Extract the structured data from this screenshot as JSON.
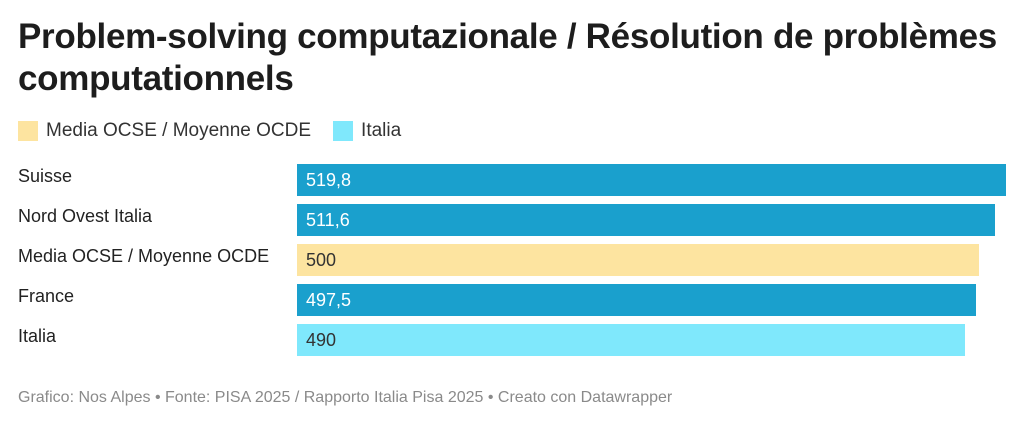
{
  "chart_data": {
    "type": "bar",
    "orientation": "horizontal",
    "title": "Problem-solving computazionale / Résolution de problèmes computationnels",
    "legend": [
      {
        "label": "Media OCSE / Moyenne OCDE",
        "color": "#fde4a0"
      },
      {
        "label": "Italia",
        "color": "#7fe8fc"
      }
    ],
    "categories": [
      "Suisse",
      "Nord Ovest Italia",
      "Media OCSE / Moyenne OCDE",
      "France",
      "Italia"
    ],
    "values": [
      519.8,
      511.6,
      500,
      497.5,
      490
    ],
    "value_labels": [
      "519,8",
      "511,6",
      "500",
      "497,5",
      "490"
    ],
    "colors": [
      "#1aa0cd",
      "#1aa0cd",
      "#fde4a0",
      "#1aa0cd",
      "#7fe8fc"
    ],
    "value_label_colors": [
      "#ffffff",
      "#ffffff",
      "#333333",
      "#ffffff",
      "#333333"
    ],
    "xlim": [
      0,
      519.8
    ]
  },
  "footer": "Grafico: Nos Alpes • Fonte: PISA 2025 / Rapporto Italia Pisa 2025 • Creato con Datawrapper"
}
